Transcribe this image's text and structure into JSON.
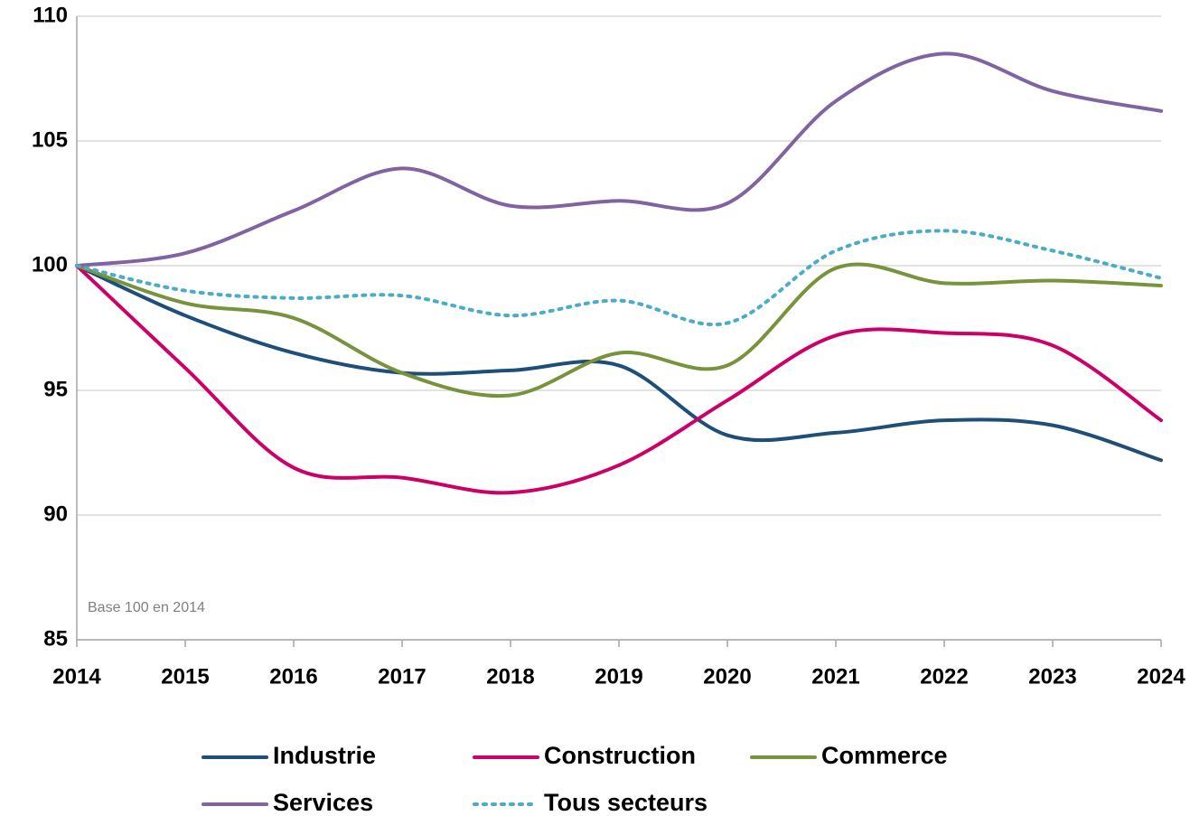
{
  "chart_data": {
    "type": "line",
    "x": [
      2014,
      2015,
      2016,
      2017,
      2018,
      2019,
      2020,
      2021,
      2022,
      2023,
      2024
    ],
    "xlim": [
      2014,
      2024
    ],
    "xticks": [
      2014,
      2015,
      2016,
      2017,
      2018,
      2019,
      2020,
      2021,
      2022,
      2023,
      2024
    ],
    "ylim": [
      85,
      110
    ],
    "yticks": [
      85,
      90,
      95,
      100,
      105,
      110
    ],
    "grid": true,
    "smooth": true,
    "annotation": "Base 100 en 2014",
    "series": [
      {
        "name": "Industrie",
        "color": "#1f4e79",
        "dash": "solid",
        "values": [
          100,
          98.0,
          96.5,
          95.7,
          95.8,
          96.0,
          93.2,
          93.3,
          93.8,
          93.6,
          92.2
        ]
      },
      {
        "name": "Construction",
        "color": "#cc0066",
        "dash": "solid",
        "values": [
          100,
          95.9,
          91.9,
          91.5,
          90.9,
          92.0,
          94.6,
          97.2,
          97.3,
          96.8,
          93.8
        ]
      },
      {
        "name": "Commerce",
        "color": "#77933c",
        "dash": "solid",
        "values": [
          100,
          98.5,
          97.9,
          95.7,
          94.8,
          96.5,
          96.0,
          99.9,
          99.3,
          99.4,
          99.2
        ]
      },
      {
        "name": "Services",
        "color": "#8064a2",
        "dash": "solid",
        "values": [
          100,
          100.5,
          102.2,
          103.9,
          102.4,
          102.6,
          102.5,
          106.6,
          108.5,
          107.0,
          106.2
        ]
      },
      {
        "name": "Tous secteurs",
        "color": "#4bacc6",
        "dash": "dotted",
        "values": [
          100,
          99.0,
          98.7,
          98.8,
          98.0,
          98.6,
          97.7,
          100.6,
          101.4,
          100.6,
          99.5
        ]
      }
    ]
  }
}
